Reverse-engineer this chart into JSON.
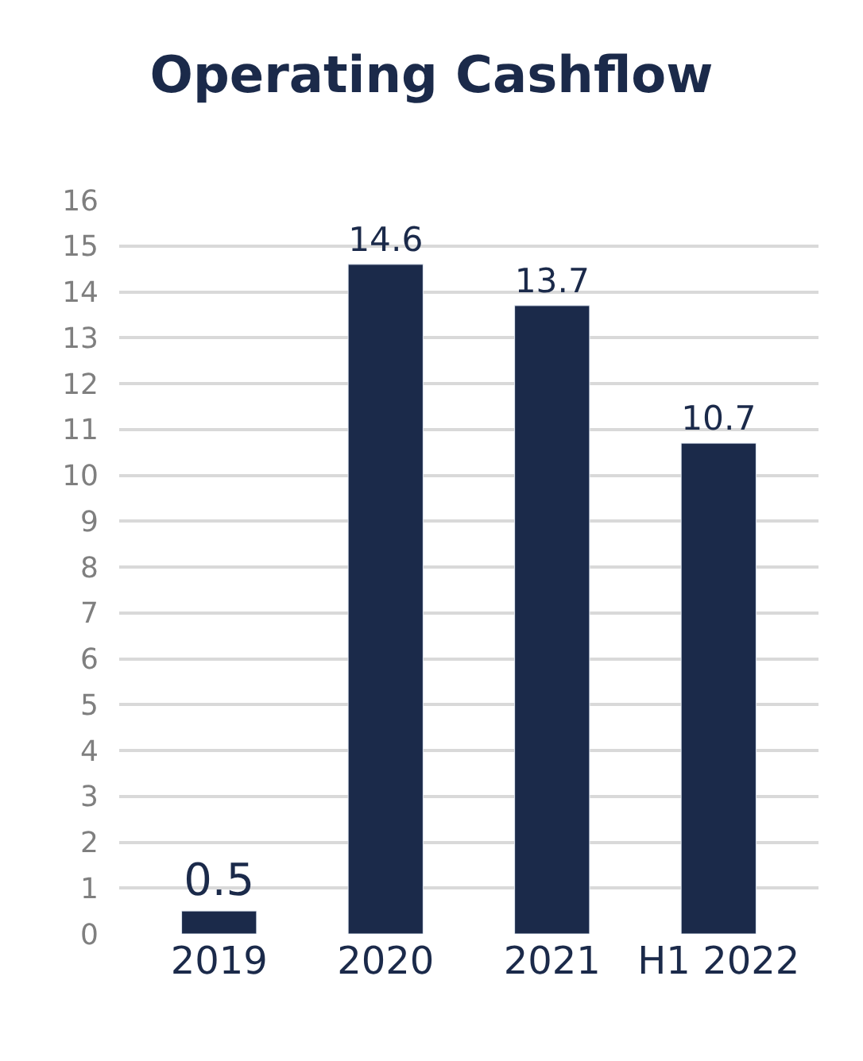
{
  "chart_data": {
    "type": "bar",
    "title": "Operating Cashflow",
    "categories": [
      "2019",
      "2020",
      "2021",
      "H1 2022"
    ],
    "values": [
      0.5,
      14.6,
      13.7,
      10.7
    ],
    "color": "#1b2a4a",
    "ylim": [
      0,
      16
    ],
    "yticks": [
      0,
      1,
      2,
      3,
      4,
      5,
      6,
      7,
      8,
      9,
      10,
      11,
      12,
      13,
      14,
      15,
      16
    ],
    "grid": "y",
    "data_labels": true,
    "legend": false
  }
}
